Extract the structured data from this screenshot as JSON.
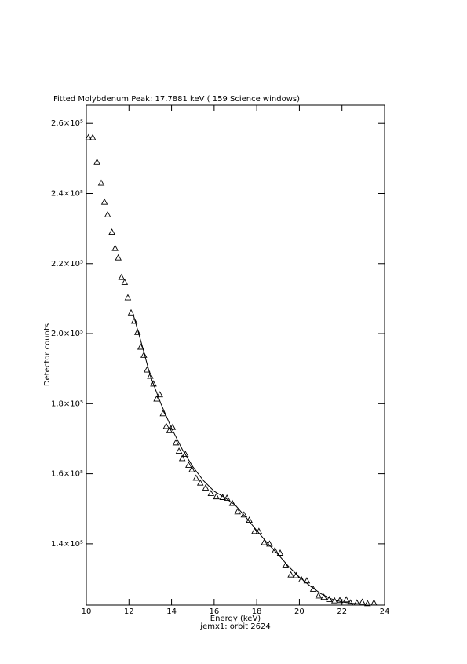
{
  "chart_data": {
    "type": "scatter",
    "title": "Fitted Molybdenum Peak:       17.7881 keV (          159 Science windows)",
    "x_label": "Energy (keV)",
    "y_label": "Detector counts",
    "subtitle": "jemx1: orbit 2624",
    "xlim": [
      10,
      24
    ],
    "xticks": [
      10,
      12,
      14,
      16,
      18,
      20,
      22,
      24
    ],
    "ylim": [
      122500,
      265200
    ],
    "yticks": [
      {
        "value": 140000,
        "label": "1.4×10⁵"
      },
      {
        "value": 160000,
        "label": "1.6×10⁵"
      },
      {
        "value": 180000,
        "label": "1.8×10⁵"
      },
      {
        "value": 200000,
        "label": "2.0×10⁵"
      },
      {
        "value": 220000,
        "label": "2.2×10⁵"
      },
      {
        "value": 240000,
        "label": "2.4×10⁵"
      },
      {
        "value": 260000,
        "label": "2.6×10⁵"
      }
    ],
    "series": [
      {
        "marker": "triangle",
        "color": "#000000",
        "x": [
          10.1,
          10.3,
          10.5,
          10.7,
          10.85,
          11.0,
          11.2,
          11.35,
          11.5,
          11.65,
          11.8,
          11.95,
          12.1,
          12.25,
          12.4,
          12.55,
          12.7,
          12.85,
          13.0,
          13.15,
          13.3,
          13.45,
          13.6,
          13.75,
          13.9,
          14.05,
          14.2,
          14.35,
          14.5,
          14.65,
          14.8,
          14.95,
          15.15,
          15.35,
          15.6,
          15.85,
          16.1,
          16.4,
          16.6,
          16.85,
          17.1,
          17.4,
          17.65,
          17.9,
          18.1,
          18.35,
          18.6,
          18.85,
          19.1,
          19.35,
          19.6,
          19.85,
          20.1,
          20.35,
          20.65,
          20.9,
          21.15,
          21.4,
          21.65,
          21.9,
          22.2,
          22.4,
          22.7,
          22.95,
          23.2,
          23.5
        ],
        "values": [
          256000,
          256000,
          249000,
          243000,
          237600,
          234000,
          229000,
          224400,
          221700,
          216100,
          214700,
          210300,
          206000,
          203600,
          200400,
          196200,
          193900,
          189700,
          187900,
          185700,
          181400,
          182600,
          177200,
          173600,
          172400,
          173300,
          168900,
          166500,
          164400,
          165600,
          162500,
          161200,
          158800,
          157400,
          156000,
          154400,
          153500,
          153300,
          153100,
          151600,
          149200,
          148300,
          146800,
          143600,
          143600,
          140400,
          140000,
          138100,
          137400,
          133800,
          131200,
          131000,
          129800,
          129500,
          127100,
          125200,
          124800,
          124200,
          123800,
          123900,
          124100,
          123200,
          123200,
          123400,
          123000,
          123200
        ]
      },
      {
        "marker": "line",
        "color": "#000000",
        "x": [
          12.2,
          12.6,
          13.0,
          13.5,
          14.0,
          14.5,
          15.0,
          15.5,
          16.0,
          16.5,
          17.0,
          17.5,
          18.0,
          18.5,
          19.0,
          19.5,
          20.0,
          20.5,
          21.0,
          21.5,
          22.0,
          22.5,
          23.0
        ],
        "values": [
          205500,
          197000,
          188000,
          180000,
          173000,
          167000,
          162000,
          158000,
          155000,
          153200,
          151000,
          147500,
          143800,
          140200,
          137000,
          133500,
          130500,
          128000,
          125800,
          124300,
          123400,
          123000,
          122800
        ]
      }
    ]
  }
}
